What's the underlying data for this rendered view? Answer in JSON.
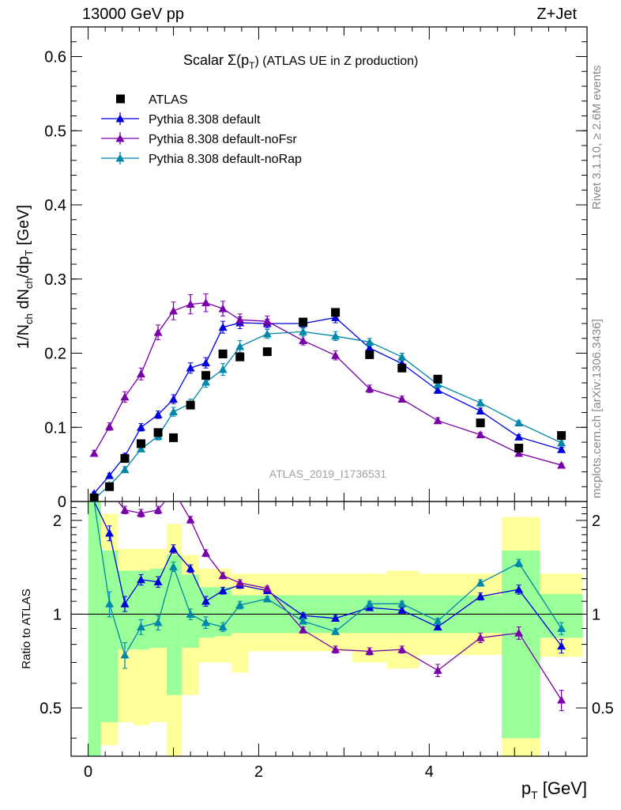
{
  "header": {
    "left": "13000 GeV pp",
    "right": "Z+Jet"
  },
  "side_text": {
    "rivet": "Rivet 3.1.10, ≥ 2.6M events",
    "mcplots": "mcplots.cern.ch [arXiv:1306.3436]"
  },
  "chart_data": {
    "type": "scatter",
    "title": "Scalar Σ(p_T) (ATLAS UE in Z production)",
    "title_prefix": "Scalar Σ(p",
    "title_sub": "T",
    "title_suffix": ") (ATLAS UE in Z production)",
    "analysis_label": "ATLAS_2019_I1736531",
    "xlabel": "p_T [GeV]",
    "ylabel": "1/N_ch dN_ch/dp_T [GeV]",
    "ratio_ylabel": "Ratio to ATLAS",
    "xlim": [
      -0.2,
      5.85
    ],
    "ylim": [
      0,
      0.64
    ],
    "ratio_ylim": [
      0.35,
      2.3
    ],
    "x_ticks": [
      0,
      2,
      4
    ],
    "y_ticks": [
      0,
      0.1,
      0.2,
      0.3,
      0.4,
      0.5,
      0.6
    ],
    "ratio_ticks": [
      0.5,
      1,
      2
    ],
    "x_tick_labels": [
      "0",
      "2",
      "4"
    ],
    "y_tick_labels": [
      "0",
      "0.1",
      "0.2",
      "0.3",
      "0.4",
      "0.5",
      "0.6"
    ],
    "ratio_tick_labels": [
      "0.5",
      "1",
      "2"
    ],
    "legend_position": "top-left",
    "data": {
      "name": "ATLAS",
      "color": "#000000",
      "x": [
        0.07,
        0.25,
        0.43,
        0.62,
        0.82,
        1.0,
        1.2,
        1.38,
        1.58,
        1.78,
        2.1,
        2.52,
        2.9,
        3.3,
        3.68,
        4.1,
        4.6,
        5.05,
        5.55
      ],
      "y": [
        0.005,
        0.02,
        0.058,
        0.078,
        0.093,
        0.086,
        0.13,
        0.17,
        0.199,
        0.195,
        0.202,
        0.242,
        0.255,
        0.198,
        0.18,
        0.165,
        0.106,
        0.072,
        0.089
      ]
    },
    "bands": {
      "x_edges": [
        0.0,
        0.15,
        0.35,
        0.53,
        0.72,
        0.92,
        1.1,
        1.3,
        1.48,
        1.68,
        1.88,
        2.35,
        2.7,
        3.1,
        3.5,
        3.88,
        4.35,
        4.85,
        5.3,
        5.8
      ],
      "green_lo": [
        0.3,
        0.45,
        0.77,
        0.77,
        0.78,
        0.55,
        0.78,
        0.84,
        0.85,
        0.87,
        0.87,
        0.87,
        0.87,
        0.87,
        0.87,
        0.87,
        0.87,
        0.4,
        0.84
      ],
      "green_hi": [
        2.3,
        1.6,
        1.38,
        1.38,
        1.4,
        1.55,
        1.34,
        1.22,
        1.22,
        1.15,
        1.15,
        1.15,
        1.15,
        1.15,
        1.15,
        1.15,
        1.15,
        1.6,
        1.16
      ],
      "yellow_lo": [
        0.3,
        0.38,
        0.45,
        0.44,
        0.45,
        0.35,
        0.55,
        0.7,
        0.7,
        0.65,
        0.76,
        0.76,
        0.76,
        0.7,
        0.67,
        0.74,
        0.74,
        0.3,
        0.73
      ],
      "yellow_hi": [
        2.3,
        2.1,
        1.62,
        1.62,
        1.62,
        1.95,
        1.55,
        1.4,
        1.4,
        1.35,
        1.35,
        1.35,
        1.35,
        1.35,
        1.38,
        1.35,
        1.35,
        2.05,
        1.35
      ]
    },
    "series": [
      {
        "name": "Pythia 8.308 default",
        "color": "#0000dd",
        "x": [
          0.07,
          0.25,
          0.43,
          0.62,
          0.82,
          1.0,
          1.2,
          1.38,
          1.58,
          1.78,
          2.1,
          2.52,
          2.9,
          3.3,
          3.68,
          4.1,
          4.6,
          5.05,
          5.55
        ],
        "y": [
          0.011,
          0.035,
          0.061,
          0.1,
          0.117,
          0.138,
          0.18,
          0.187,
          0.235,
          0.241,
          0.24,
          0.24,
          0.248,
          0.207,
          0.186,
          0.15,
          0.122,
          0.087,
          0.07
        ],
        "err": [
          0.002,
          0.003,
          0.004,
          0.005,
          0.005,
          0.006,
          0.007,
          0.007,
          0.008,
          0.008,
          0.006,
          0.006,
          0.007,
          0.006,
          0.005,
          0.004,
          0.004,
          0.003,
          0.003
        ],
        "ratio": [
          2.3,
          1.82,
          1.08,
          1.29,
          1.27,
          1.62,
          1.4,
          1.1,
          1.19,
          1.24,
          1.19,
          0.99,
          0.97,
          1.05,
          1.03,
          0.91,
          1.14,
          1.2,
          0.79
        ],
        "ratio_err": [
          0.0,
          0.1,
          0.06,
          0.05,
          0.05,
          0.05,
          0.04,
          0.04,
          0.03,
          0.03,
          0.02,
          0.02,
          0.02,
          0.02,
          0.02,
          0.02,
          0.03,
          0.04,
          0.04
        ]
      },
      {
        "name": "Pythia 8.308 default-noFsr",
        "color": "#7a00aa",
        "x": [
          0.07,
          0.25,
          0.43,
          0.62,
          0.82,
          1.0,
          1.2,
          1.38,
          1.58,
          1.78,
          2.1,
          2.52,
          2.9,
          3.3,
          3.68,
          4.1,
          4.6,
          5.05,
          5.55
        ],
        "y": [
          0.065,
          0.101,
          0.141,
          0.172,
          0.228,
          0.257,
          0.266,
          0.268,
          0.26,
          0.245,
          0.243,
          0.217,
          0.197,
          0.152,
          0.138,
          0.109,
          0.09,
          0.065,
          0.049
        ],
        "err": [
          0.004,
          0.005,
          0.007,
          0.008,
          0.01,
          0.012,
          0.013,
          0.012,
          0.01,
          0.008,
          0.007,
          0.006,
          0.006,
          0.005,
          0.004,
          0.004,
          0.003,
          0.003,
          0.002
        ],
        "ratio": [
          2.5,
          2.5,
          2.16,
          2.11,
          2.16,
          2.5,
          2.01,
          1.57,
          1.33,
          1.26,
          1.21,
          0.89,
          0.77,
          0.76,
          0.77,
          0.66,
          0.84,
          0.87,
          0.53
        ],
        "ratio_err": [
          0.0,
          0.0,
          0.06,
          0.06,
          0.06,
          0.0,
          0.05,
          0.04,
          0.03,
          0.03,
          0.02,
          0.02,
          0.02,
          0.02,
          0.02,
          0.03,
          0.03,
          0.04,
          0.04
        ]
      },
      {
        "name": "Pythia 8.308 default-noRap",
        "color": "#0088aa",
        "x": [
          0.07,
          0.25,
          0.43,
          0.62,
          0.82,
          1.0,
          1.2,
          1.38,
          1.58,
          1.78,
          2.1,
          2.52,
          2.9,
          3.3,
          3.68,
          4.1,
          4.6,
          5.05,
          5.55
        ],
        "y": [
          0.003,
          0.022,
          0.043,
          0.071,
          0.088,
          0.121,
          0.132,
          0.161,
          0.178,
          0.209,
          0.226,
          0.229,
          0.223,
          0.215,
          0.195,
          0.158,
          0.133,
          0.106,
          0.079
        ],
        "err": [
          0.002,
          0.003,
          0.004,
          0.004,
          0.005,
          0.006,
          0.006,
          0.007,
          0.008,
          0.008,
          0.006,
          0.006,
          0.006,
          0.005,
          0.005,
          0.004,
          0.004,
          0.003,
          0.003
        ],
        "ratio": [
          2.3,
          1.08,
          0.74,
          0.91,
          0.94,
          1.42,
          1.0,
          0.94,
          0.91,
          1.07,
          1.12,
          0.95,
          0.88,
          1.08,
          1.08,
          0.95,
          1.26,
          1.46,
          0.9
        ],
        "ratio_err": [
          0.0,
          0.1,
          0.07,
          0.05,
          0.05,
          0.05,
          0.04,
          0.04,
          0.03,
          0.03,
          0.02,
          0.02,
          0.02,
          0.02,
          0.02,
          0.02,
          0.03,
          0.04,
          0.04
        ]
      }
    ],
    "colors": {
      "band_yellow": "#ffff99",
      "band_green": "#99ff99"
    }
  }
}
